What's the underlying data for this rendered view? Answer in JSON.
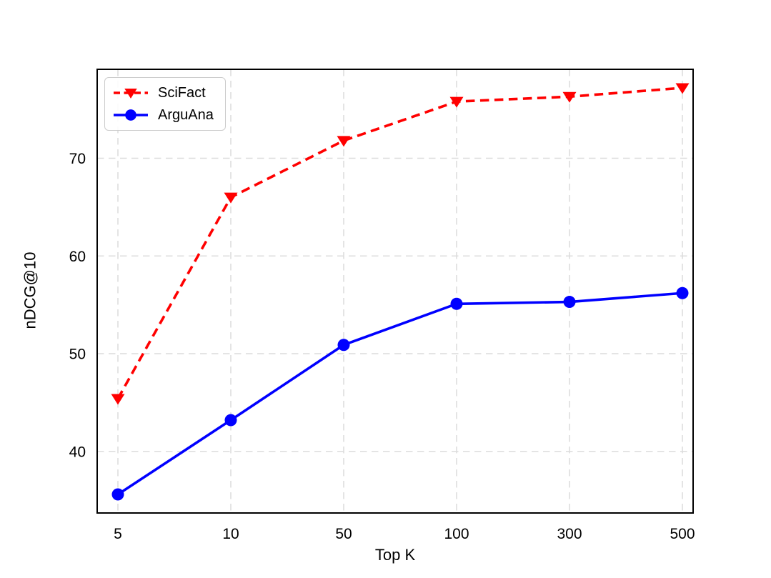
{
  "figure": {
    "background": "#ffffff",
    "grid_color": "#dcdcdc",
    "spine_color": "#000000",
    "text_color": "#000000"
  },
  "chart_data": {
    "type": "line",
    "title": "",
    "xlabel": "Top K",
    "ylabel": "nDCG@10",
    "categories": [
      "5",
      "10",
      "50",
      "100",
      "300",
      "500"
    ],
    "series": [
      {
        "name": "SciFact",
        "color": "#ff0000",
        "linestyle": "dashed",
        "marker": "triangle-down",
        "values": [
          45.4,
          66.0,
          71.8,
          75.8,
          76.3,
          77.2
        ]
      },
      {
        "name": "ArguAna",
        "color": "#0000ff",
        "linestyle": "solid",
        "marker": "circle",
        "values": [
          35.6,
          43.2,
          50.9,
          55.1,
          55.3,
          56.2
        ]
      }
    ],
    "yticks": [
      40,
      50,
      60,
      70
    ],
    "ylim": [
      33.7,
      79.1
    ],
    "grid": true,
    "legend_position": "upper-left"
  }
}
